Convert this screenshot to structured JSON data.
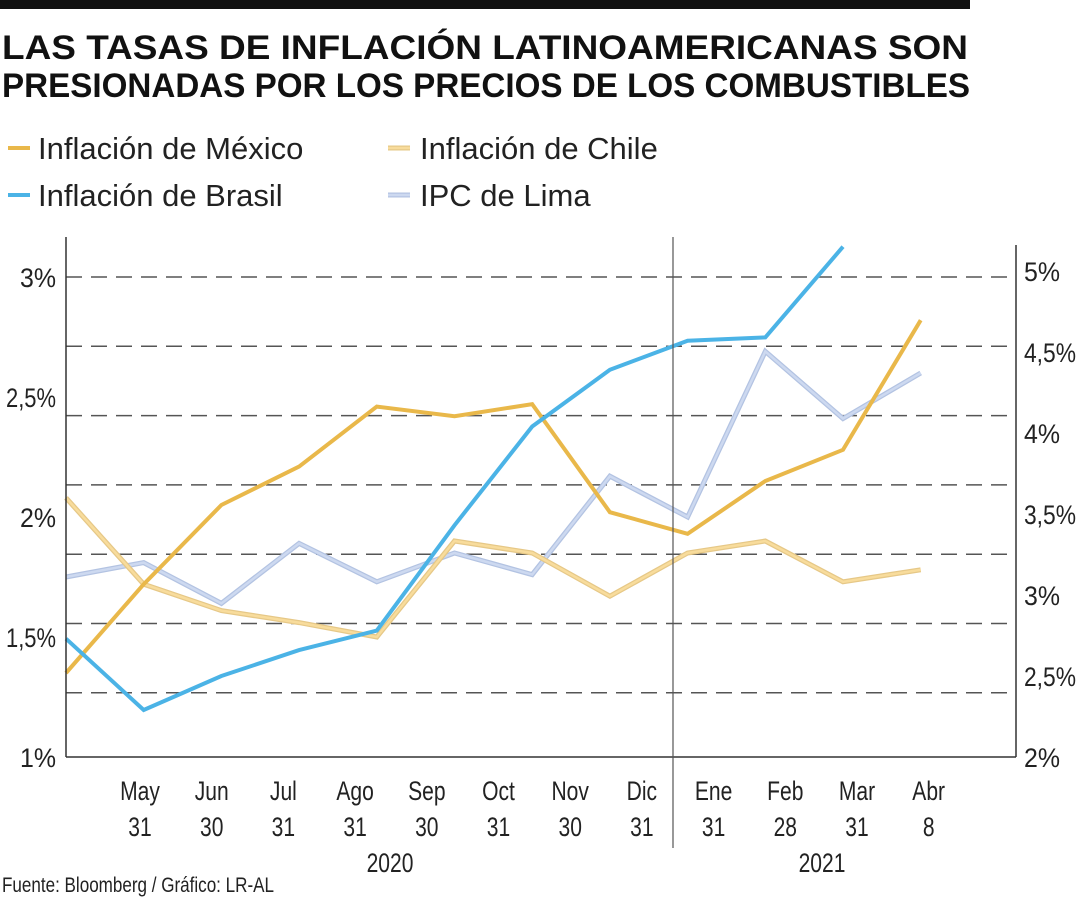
{
  "title": {
    "line1": "LAS TASAS DE INFLACIÓN LATINOAMERICANAS SON",
    "line2": "PRESIONADAS POR LOS PRECIOS DE LOS COMBUSTIBLES"
  },
  "source": "Fuente: Bloomberg / Gráfico: LR-AL",
  "chart_data": {
    "type": "line",
    "title": "LAS TASAS DE INFLACIÓN LATINOAMERICANAS SON PRESIONADAS POR LOS PRECIOS DE LOS COMBUSTIBLES",
    "legend_position": "top",
    "grid": "horizontal dashed",
    "x": [
      "2020-04-30",
      "2020-05-31",
      "2020-06-30",
      "2020-07-31",
      "2020-08-31",
      "2020-09-30",
      "2020-10-31",
      "2020-11-30",
      "2020-12-31",
      "2021-01-31",
      "2021-02-28",
      "2021-03-31"
    ],
    "x_ticks": [
      {
        "month": "May",
        "day": "31"
      },
      {
        "month": "Jun",
        "day": "30"
      },
      {
        "month": "Jul",
        "day": "31"
      },
      {
        "month": "Ago",
        "day": "31"
      },
      {
        "month": "Sep",
        "day": "30"
      },
      {
        "month": "Oct",
        "day": "31"
      },
      {
        "month": "Nov",
        "day": "30"
      },
      {
        "month": "Dic",
        "day": "31"
      },
      {
        "month": "Ene",
        "day": "31"
      },
      {
        "month": "Feb",
        "day": "28"
      },
      {
        "month": "Mar",
        "day": "31"
      },
      {
        "month": "Abr",
        "day": "8"
      }
    ],
    "years": [
      "2020",
      "2021"
    ],
    "y_left": {
      "ylim": [
        1,
        3
      ],
      "ticks": [
        "1%",
        "1,5%",
        "2%",
        "2,5%",
        "3%"
      ]
    },
    "y_right": {
      "ylim": [
        2,
        5
      ],
      "ticks": [
        "2%",
        "2,5%",
        "3%",
        "3,5%",
        "4%",
        "4,5%",
        "5%"
      ]
    },
    "series": [
      {
        "name": "Inflación de México",
        "color": "#e9b84a",
        "axis": "left",
        "style": "solid",
        "values": [
          1.35,
          1.72,
          2.05,
          2.21,
          2.46,
          2.42,
          2.47,
          2.02,
          1.93,
          2.15,
          2.28,
          2.82
        ]
      },
      {
        "name": "Inflación de Chile",
        "color": "#f8dc9c",
        "axis": "left",
        "style": "double",
        "values": [
          2.08,
          1.72,
          1.61,
          1.56,
          1.5,
          1.9,
          1.85,
          1.67,
          1.85,
          1.9,
          1.73,
          1.78
        ]
      },
      {
        "name": "Inflación de Brasil",
        "color": "#4bb3e6",
        "axis": "right",
        "style": "solid",
        "values": [
          2.73,
          2.29,
          2.5,
          2.66,
          2.78,
          3.43,
          4.04,
          4.39,
          4.57,
          4.59,
          5.15,
          null
        ]
      },
      {
        "name": "IPC de Lima",
        "color": "#cdd9f0",
        "axis": "left",
        "style": "double",
        "values": [
          1.75,
          1.81,
          1.64,
          1.89,
          1.73,
          1.85,
          1.76,
          2.17,
          2.0,
          2.69,
          2.41,
          2.6
        ]
      }
    ]
  }
}
